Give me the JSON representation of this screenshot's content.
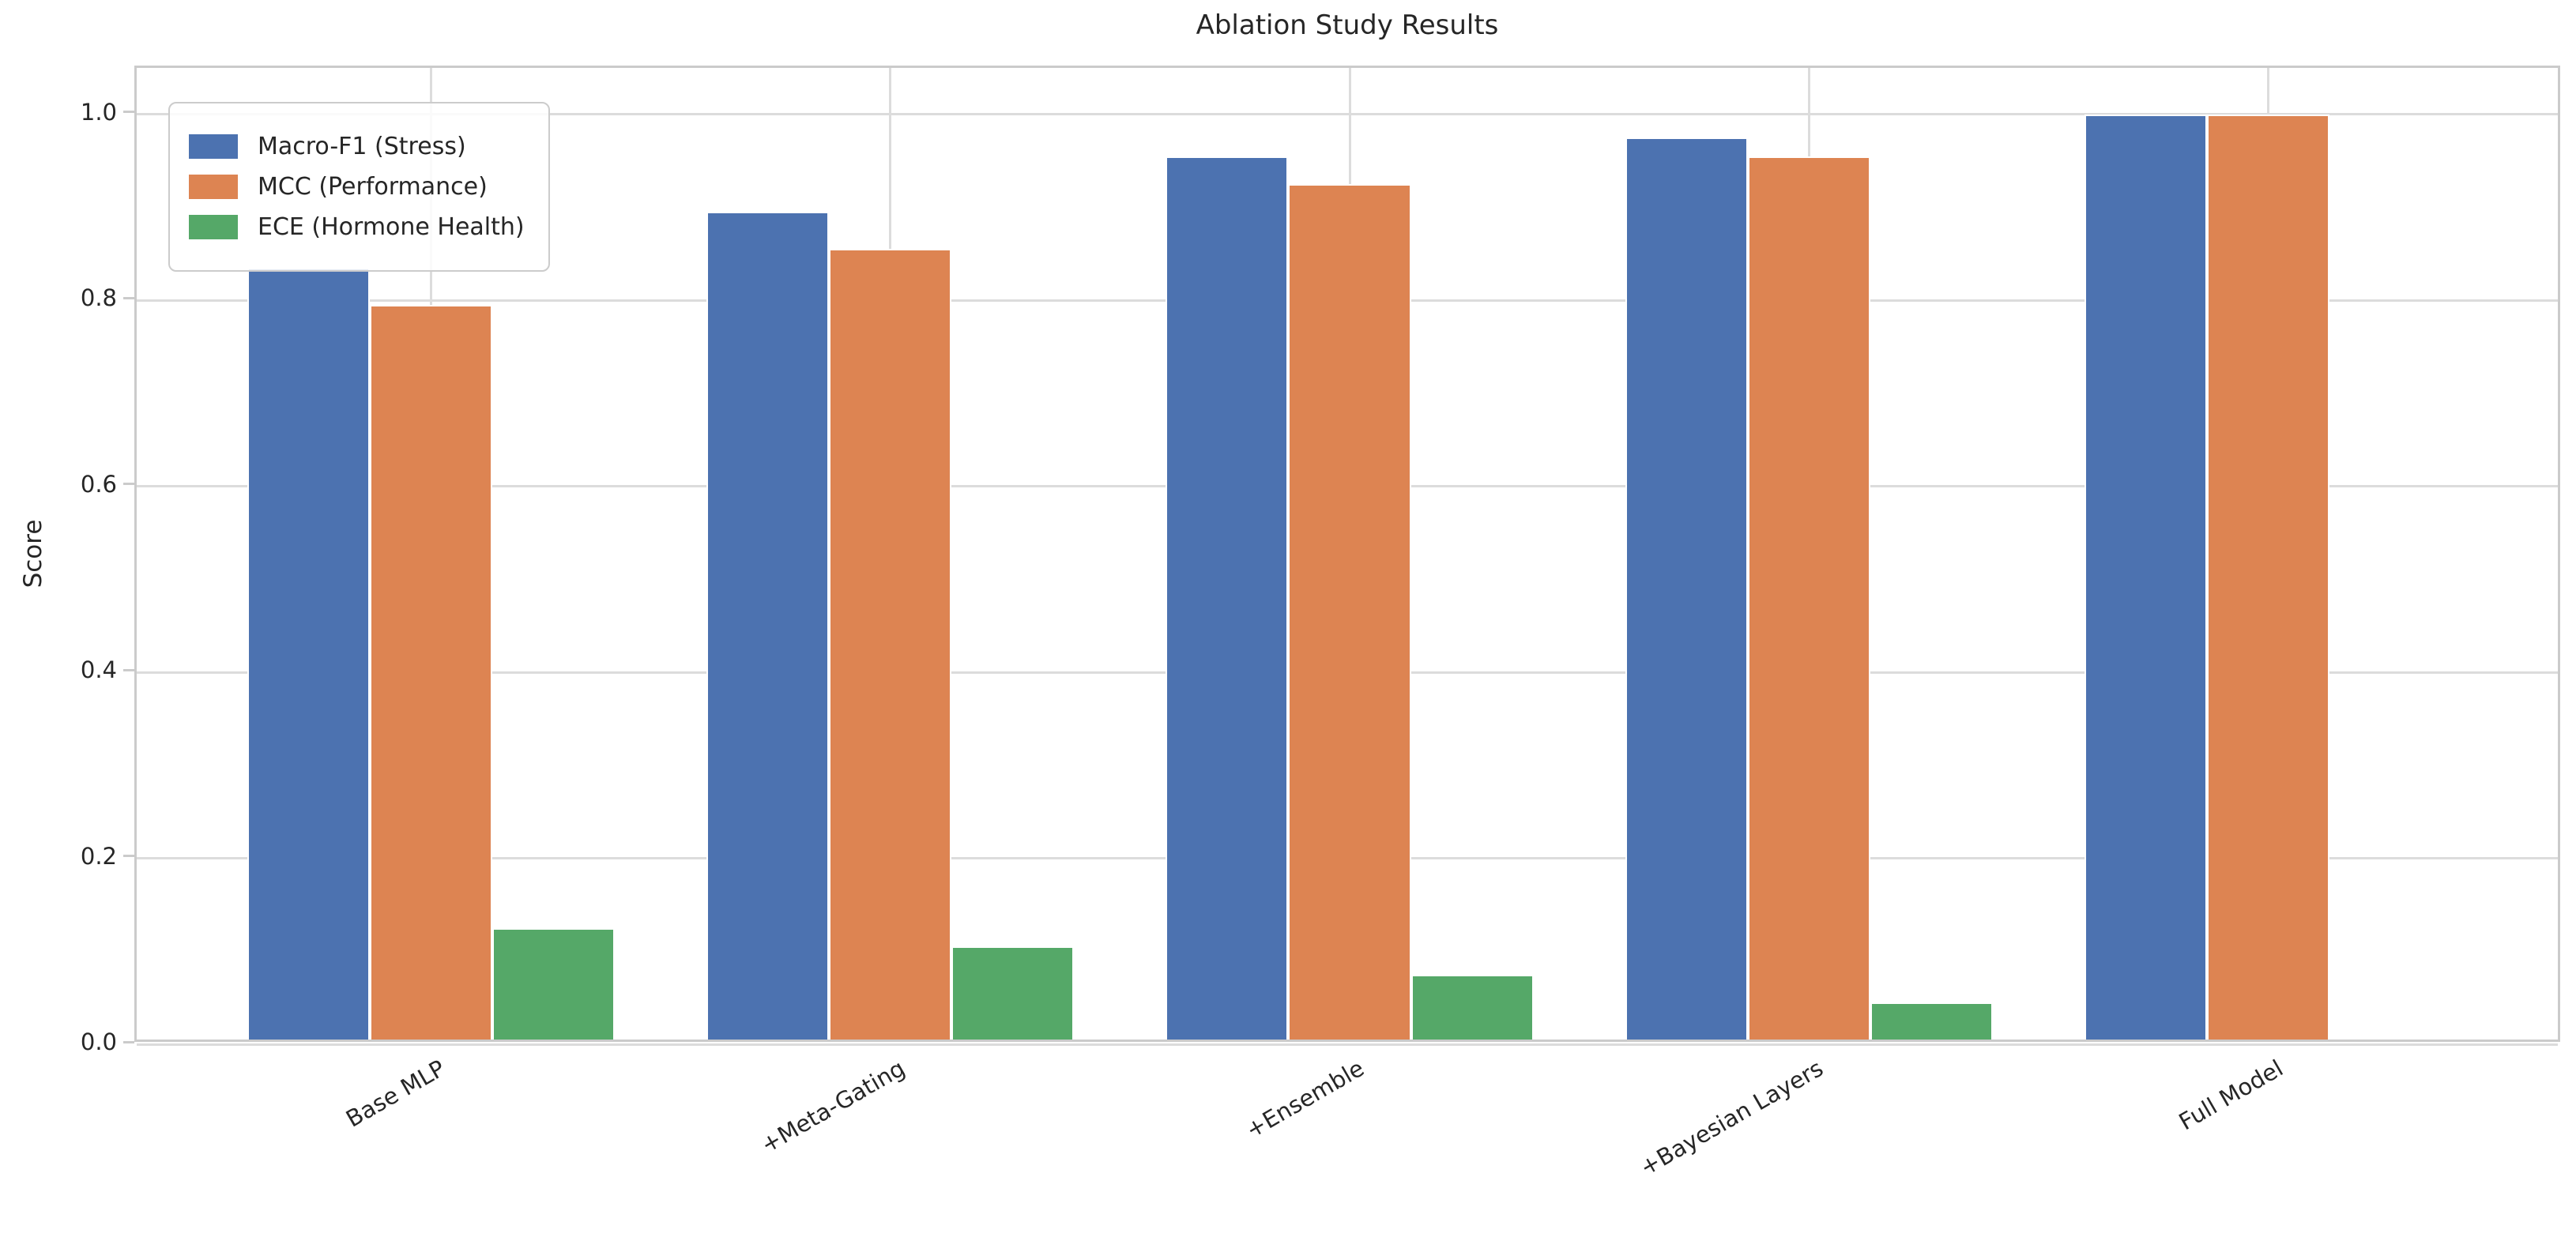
{
  "chart_data": {
    "type": "bar",
    "title": "Ablation Study Results",
    "xlabel": "",
    "ylabel": "Score",
    "categories": [
      "Base MLP",
      "+Meta-Gating",
      "+Ensemble",
      "+Bayesian Layers",
      "Full Model"
    ],
    "series": [
      {
        "name": "Macro-F1 (Stress)",
        "color": "#4C72B0",
        "values": [
          0.83,
          0.89,
          0.95,
          0.97,
          0.995
        ]
      },
      {
        "name": "MCC (Performance)",
        "color": "#DD8452",
        "values": [
          0.79,
          0.85,
          0.92,
          0.95,
          0.995
        ]
      },
      {
        "name": "ECE (Hormone Health)",
        "color": "#55A868",
        "values": [
          0.12,
          0.1,
          0.07,
          0.04,
          0.0
        ]
      }
    ],
    "ylim": [
      0,
      1.05
    ],
    "yticks": [
      0.0,
      0.2,
      0.4,
      0.6,
      0.8,
      1.0
    ],
    "ytick_format": "one_decimal",
    "grid": true,
    "x_tick_rotation_deg": 30,
    "legend_position": "upper-left",
    "bar_group_width_fraction": 0.8,
    "colors": {
      "background": "#FFFFFF",
      "grid": "#DCDCDC",
      "spine": "#CBCBCB",
      "text": "#262626"
    }
  }
}
